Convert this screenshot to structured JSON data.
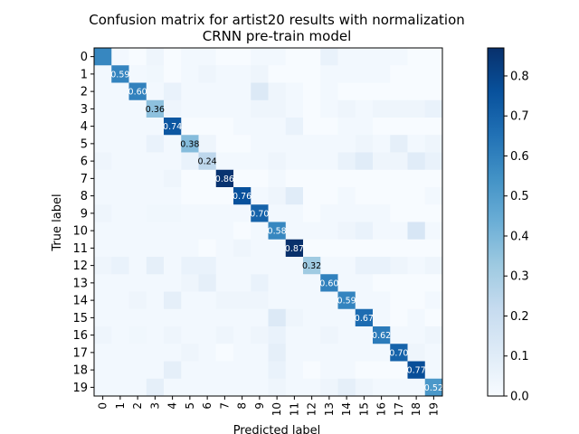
{
  "chart_data": {
    "type": "heatmap",
    "title": "Confusion matrix for artist20 results with normalization",
    "subtitle": "CRNN pre-train model",
    "xlabel": "Predicted label",
    "ylabel": "True label",
    "x_ticks": [
      "0",
      "1",
      "2",
      "3",
      "4",
      "5",
      "6",
      "7",
      "8",
      "9",
      "10",
      "11",
      "12",
      "13",
      "14",
      "15",
      "16",
      "17",
      "18",
      "19"
    ],
    "y_ticks": [
      "0",
      "1",
      "2",
      "3",
      "4",
      "5",
      "6",
      "7",
      "8",
      "9",
      "10",
      "11",
      "12",
      "13",
      "14",
      "15",
      "16",
      "17",
      "18",
      "19"
    ],
    "colormap": "Blues",
    "colorbar": {
      "range": [
        0.0,
        0.87
      ],
      "ticks": [
        "0.0",
        "0.1",
        "0.2",
        "0.3",
        "0.4",
        "0.5",
        "0.6",
        "0.7",
        "0.8"
      ]
    },
    "cell_labels": [
      "",
      "0.59",
      "0.60",
      "0.36",
      "0.74",
      "0.38",
      "0.24",
      "0.86",
      "0.76",
      "0.70",
      "0.58",
      "0.87",
      "0.32",
      "0.60",
      "0.59",
      "0.67",
      "0.62",
      "0.70",
      "0.77",
      "0.52"
    ],
    "matrix": [
      [
        0.58,
        0.02,
        0.0,
        0.04,
        0.0,
        0.02,
        0.02,
        0.0,
        0.0,
        0.02,
        0.02,
        0.0,
        0.0,
        0.06,
        0.02,
        0.02,
        0.02,
        0.02,
        0.0,
        0.0
      ],
      [
        0.02,
        0.59,
        0.02,
        0.03,
        0.0,
        0.02,
        0.04,
        0.02,
        0.02,
        0.04,
        0.0,
        0.0,
        0.0,
        0.02,
        0.02,
        0.02,
        0.02,
        0.0,
        0.0,
        0.0
      ],
      [
        0.02,
        0.02,
        0.6,
        0.02,
        0.06,
        0.02,
        0.02,
        0.02,
        0.02,
        0.12,
        0.04,
        0.02,
        0.0,
        0.02,
        0.0,
        0.0,
        0.0,
        0.0,
        0.0,
        0.0
      ],
      [
        0.02,
        0.02,
        0.02,
        0.36,
        0.04,
        0.02,
        0.02,
        0.02,
        0.02,
        0.04,
        0.04,
        0.02,
        0.0,
        0.02,
        0.04,
        0.02,
        0.04,
        0.04,
        0.04,
        0.06
      ],
      [
        0.02,
        0.02,
        0.02,
        0.02,
        0.74,
        0.0,
        0.0,
        0.0,
        0.02,
        0.02,
        0.02,
        0.06,
        0.0,
        0.0,
        0.02,
        0.02,
        0.0,
        0.0,
        0.0,
        0.0
      ],
      [
        0.02,
        0.02,
        0.02,
        0.06,
        0.02,
        0.38,
        0.04,
        0.0,
        0.0,
        0.02,
        0.02,
        0.02,
        0.02,
        0.02,
        0.02,
        0.04,
        0.02,
        0.08,
        0.02,
        0.04
      ],
      [
        0.04,
        0.02,
        0.02,
        0.02,
        0.02,
        0.06,
        0.24,
        0.02,
        0.02,
        0.02,
        0.04,
        0.02,
        0.02,
        0.02,
        0.06,
        0.1,
        0.04,
        0.04,
        0.1,
        0.06
      ],
      [
        0.02,
        0.02,
        0.02,
        0.02,
        0.04,
        0.0,
        0.0,
        0.86,
        0.0,
        0.0,
        0.02,
        0.0,
        0.0,
        0.0,
        0.0,
        0.0,
        0.0,
        0.0,
        0.0,
        0.0
      ],
      [
        0.02,
        0.02,
        0.02,
        0.02,
        0.02,
        0.0,
        0.0,
        0.0,
        0.76,
        0.02,
        0.04,
        0.1,
        0.0,
        0.0,
        0.02,
        0.0,
        0.0,
        0.0,
        0.0,
        0.02
      ],
      [
        0.04,
        0.02,
        0.02,
        0.03,
        0.03,
        0.02,
        0.02,
        0.02,
        0.02,
        0.7,
        0.02,
        0.02,
        0.0,
        0.02,
        0.02,
        0.02,
        0.02,
        0.0,
        0.0,
        0.0
      ],
      [
        0.02,
        0.02,
        0.02,
        0.02,
        0.02,
        0.02,
        0.02,
        0.02,
        0.0,
        0.02,
        0.58,
        0.02,
        0.02,
        0.02,
        0.04,
        0.06,
        0.02,
        0.02,
        0.14,
        0.02
      ],
      [
        0.02,
        0.02,
        0.02,
        0.02,
        0.02,
        0.02,
        0.0,
        0.02,
        0.04,
        0.02,
        0.02,
        0.87,
        0.0,
        0.0,
        0.0,
        0.0,
        0.0,
        0.0,
        0.0,
        0.0
      ],
      [
        0.04,
        0.06,
        0.02,
        0.08,
        0.02,
        0.06,
        0.06,
        0.02,
        0.02,
        0.02,
        0.02,
        0.02,
        0.32,
        0.02,
        0.02,
        0.06,
        0.06,
        0.04,
        0.02,
        0.04
      ],
      [
        0.02,
        0.02,
        0.02,
        0.02,
        0.02,
        0.04,
        0.08,
        0.02,
        0.02,
        0.06,
        0.02,
        0.02,
        0.02,
        0.6,
        0.02,
        0.02,
        0.0,
        0.0,
        0.0,
        0.0
      ],
      [
        0.02,
        0.02,
        0.04,
        0.02,
        0.08,
        0.02,
        0.02,
        0.04,
        0.04,
        0.04,
        0.02,
        0.02,
        0.02,
        0.02,
        0.59,
        0.02,
        0.02,
        0.0,
        0.0,
        0.02
      ],
      [
        0.02,
        0.02,
        0.02,
        0.02,
        0.02,
        0.02,
        0.02,
        0.02,
        0.02,
        0.02,
        0.12,
        0.04,
        0.02,
        0.02,
        0.02,
        0.67,
        0.02,
        0.0,
        0.02,
        0.0
      ],
      [
        0.04,
        0.02,
        0.03,
        0.02,
        0.04,
        0.02,
        0.02,
        0.04,
        0.02,
        0.04,
        0.06,
        0.02,
        0.02,
        0.04,
        0.02,
        0.02,
        0.62,
        0.02,
        0.02,
        0.04
      ],
      [
        0.02,
        0.02,
        0.02,
        0.02,
        0.02,
        0.04,
        0.02,
        0.0,
        0.02,
        0.02,
        0.08,
        0.02,
        0.02,
        0.02,
        0.02,
        0.02,
        0.02,
        0.7,
        0.04,
        0.02
      ],
      [
        0.02,
        0.02,
        0.02,
        0.02,
        0.08,
        0.02,
        0.02,
        0.02,
        0.02,
        0.02,
        0.06,
        0.02,
        0.0,
        0.02,
        0.02,
        0.0,
        0.0,
        0.0,
        0.77,
        0.02
      ],
      [
        0.02,
        0.02,
        0.02,
        0.08,
        0.02,
        0.02,
        0.02,
        0.02,
        0.02,
        0.02,
        0.04,
        0.02,
        0.02,
        0.04,
        0.08,
        0.04,
        0.02,
        0.02,
        0.02,
        0.52
      ]
    ]
  }
}
